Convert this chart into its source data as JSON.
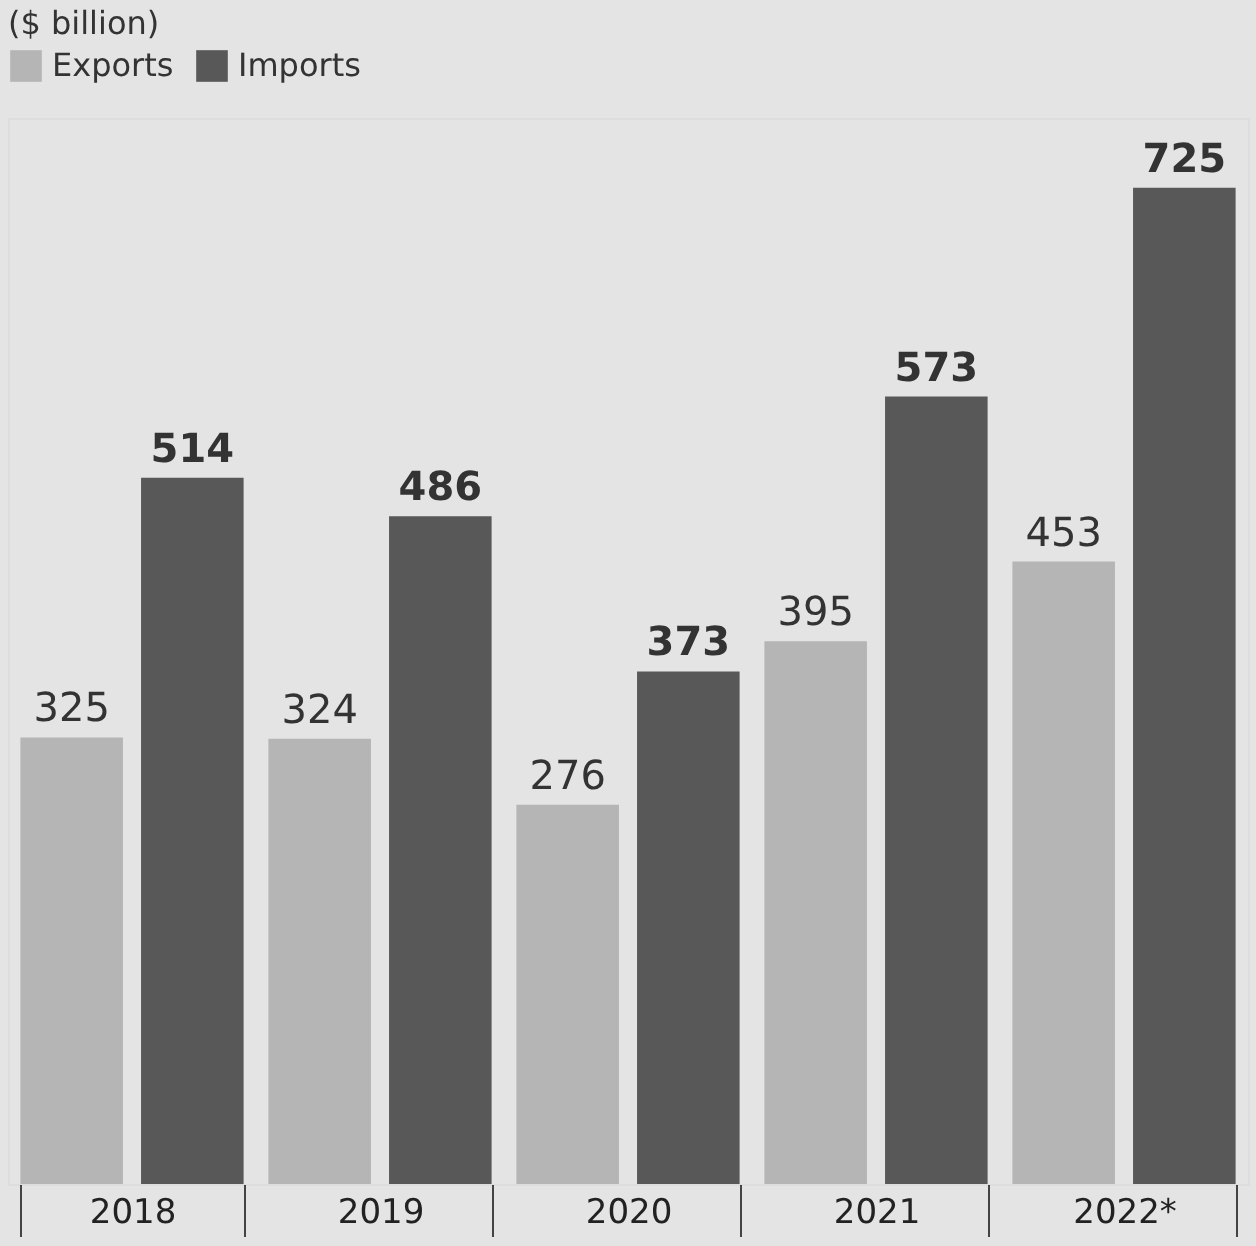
{
  "chart_data": {
    "type": "bar",
    "subtitle": "($ billion)",
    "categories": [
      "2018",
      "2019",
      "2020",
      "2021",
      "2022*"
    ],
    "series": [
      {
        "name": "Exports",
        "color": "#b5b5b5",
        "values": [
          325,
          324,
          276,
          395,
          453
        ]
      },
      {
        "name": "Imports",
        "color": "#585858",
        "values": [
          514,
          486,
          373,
          573,
          725
        ]
      }
    ],
    "data_labels": true,
    "legend": "top left"
  }
}
